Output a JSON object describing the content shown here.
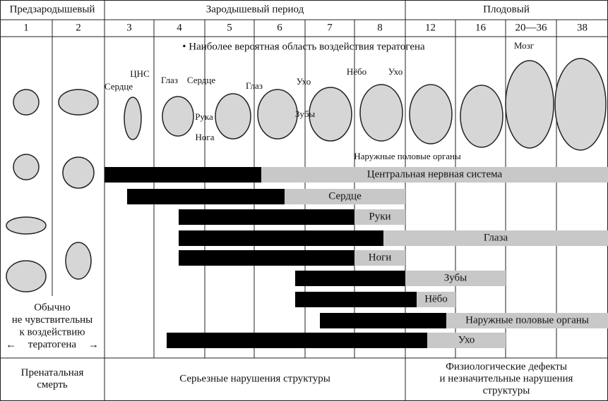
{
  "header": {
    "periods": [
      "Предзародышевый",
      "Зародышевый период",
      "Плодовый"
    ],
    "weeks": [
      "1",
      "2",
      "3",
      "4",
      "5",
      "6",
      "7",
      "8",
      "12",
      "16",
      "20—36",
      "38"
    ]
  },
  "note": "• Наиболее вероятная область воздействия тератогена",
  "embryo_labels": [
    "Сердце",
    "ЦНС",
    "Глаз",
    "Сердце",
    "Рука",
    "Нога",
    "Глаз",
    "Ухо",
    "Зубы",
    "Нёбо",
    "Ухо",
    "Наружные половые органы",
    "Мозг"
  ],
  "bars": [
    "Центральная нервная система",
    "Сердце",
    "Руки",
    "Глаза",
    "Ноги",
    "Зубы",
    "Нёбо",
    "Наружные половые органы",
    "Ухо"
  ],
  "left_note": [
    "Обычно",
    "не чувствительны",
    "к воздействию",
    "тератогена"
  ],
  "footer": [
    [
      "Пренатальная",
      "смерть"
    ],
    [
      "Серьезные нарушения структуры"
    ],
    [
      "Физиологические дефекты",
      "и незначительные нарушения",
      "структуры"
    ]
  ]
}
